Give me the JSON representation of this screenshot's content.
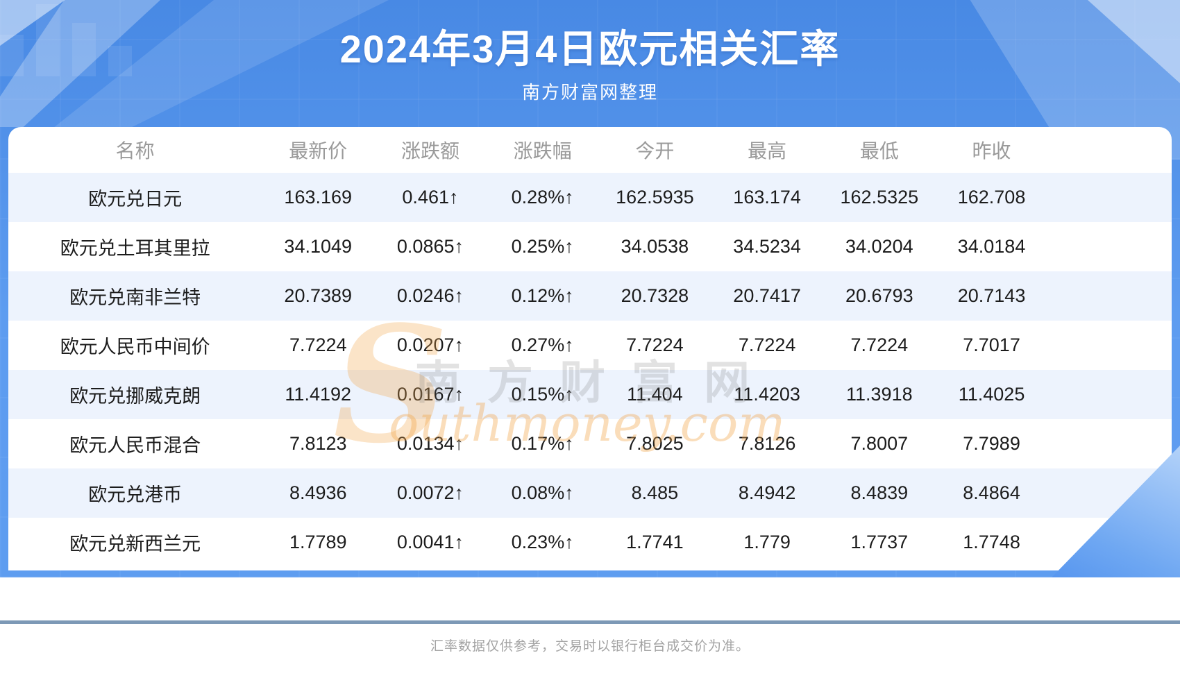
{
  "page": {
    "title": "2024年3月4日欧元相关汇率",
    "subtitle": "南方财富网整理",
    "footer_note": "汇率数据仅供参考，交易时以银行柜台成交价为准。"
  },
  "watermark": {
    "initial": "S",
    "cn": "南方财富网",
    "en": "outhmoney.com"
  },
  "colors": {
    "hero_blue": "#4889e4",
    "up_red": "#f92a2a",
    "row_alt_blue": "#edf3fd",
    "header_text_gray": "#9a9a9a",
    "divider_slate": "#7d99b6"
  },
  "table": {
    "columns": [
      "名称",
      "最新价",
      "涨跌额",
      "涨跌幅",
      "今开",
      "最高",
      "最低",
      "昨收"
    ],
    "row_keys": [
      "name",
      "latest",
      "change",
      "pct",
      "open",
      "high",
      "low",
      "prev"
    ],
    "red_keys": [
      "latest",
      "change",
      "pct"
    ],
    "rows": [
      {
        "name": "欧元兑日元",
        "latest": "163.169",
        "change": "0.461↑",
        "pct": "0.28%↑",
        "open": "162.5935",
        "high": "163.174",
        "low": "162.5325",
        "prev": "162.708"
      },
      {
        "name": "欧元兑土耳其里拉",
        "latest": "34.1049",
        "change": "0.0865↑",
        "pct": "0.25%↑",
        "open": "34.0538",
        "high": "34.5234",
        "low": "34.0204",
        "prev": "34.0184"
      },
      {
        "name": "欧元兑南非兰特",
        "latest": "20.7389",
        "change": "0.0246↑",
        "pct": "0.12%↑",
        "open": "20.7328",
        "high": "20.7417",
        "low": "20.6793",
        "prev": "20.7143"
      },
      {
        "name": "欧元人民币中间价",
        "latest": "7.7224",
        "change": "0.0207↑",
        "pct": "0.27%↑",
        "open": "7.7224",
        "high": "7.7224",
        "low": "7.7224",
        "prev": "7.7017"
      },
      {
        "name": "欧元兑挪威克朗",
        "latest": "11.4192",
        "change": "0.0167↑",
        "pct": "0.15%↑",
        "open": "11.404",
        "high": "11.4203",
        "low": "11.3918",
        "prev": "11.4025"
      },
      {
        "name": "欧元人民币混合",
        "latest": "7.8123",
        "change": "0.0134↑",
        "pct": "0.17%↑",
        "open": "7.8025",
        "high": "7.8126",
        "low": "7.8007",
        "prev": "7.7989"
      },
      {
        "name": "欧元兑港币",
        "latest": "8.4936",
        "change": "0.0072↑",
        "pct": "0.08%↑",
        "open": "8.485",
        "high": "8.4942",
        "low": "8.4839",
        "prev": "8.4864"
      },
      {
        "name": "欧元兑新西兰元",
        "latest": "1.7789",
        "change": "0.0041↑",
        "pct": "0.23%↑",
        "open": "1.7741",
        "high": "1.779",
        "low": "1.7737",
        "prev": "1.7748"
      }
    ]
  }
}
